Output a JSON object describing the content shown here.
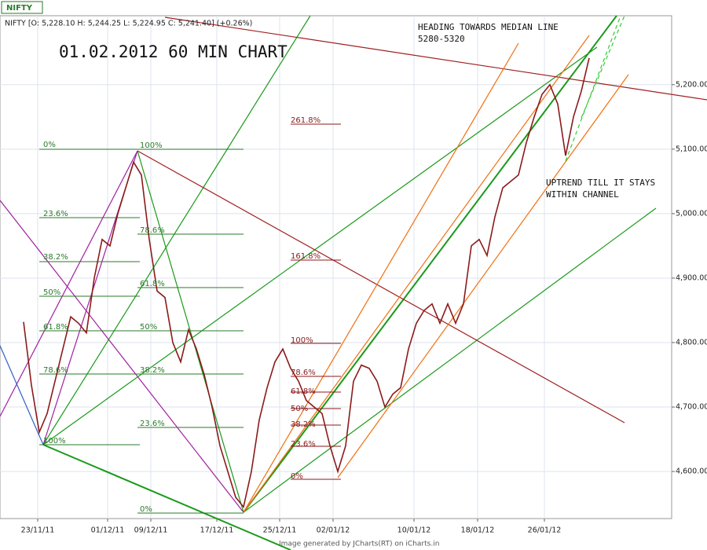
{
  "chart_data": {
    "type": "line",
    "symbol": "NIFTY",
    "title": "NIFTY [O: 5,228.10  H: 5,244.25  L: 5,224.95  C: 5,241.40] (+0.26%)",
    "subtitle": "01.02.2012 60 MIN CHART",
    "footer": "Image generated by  JCharts(RT) on iCharts.in",
    "annotations": {
      "target": "HEADING TOWARDS MEDIAN LINE",
      "target_range": "5280-5320",
      "trend_1": "UPTREND TILL IT STAYS",
      "trend_2": "WITHIN CHANNEL"
    },
    "fib_left": [
      "0%",
      "23.6%",
      "38.2%",
      "50%",
      "61.8%",
      "78.6%",
      "100%"
    ],
    "fib_mid": [
      "100%",
      "78.6%",
      "61.8%",
      "50%",
      "38.2%",
      "23.6%",
      "0%"
    ],
    "fib_right": [
      "261.8%",
      "161.8%",
      "100%",
      "78.6%",
      "61.8%",
      "50%",
      "38.2%",
      "23.6%",
      "0%"
    ],
    "x": [
      0,
      1,
      2,
      3,
      4,
      5,
      6,
      7,
      8,
      9,
      10,
      11,
      12,
      13,
      14,
      15,
      16,
      17,
      18,
      19,
      20,
      21,
      22,
      23,
      24,
      25,
      26,
      27,
      28,
      29,
      30,
      31,
      32,
      33,
      34,
      35,
      36,
      37,
      38,
      39,
      40,
      41,
      42,
      43,
      44,
      45,
      46,
      47,
      48,
      49,
      50,
      51,
      52,
      53,
      54,
      55,
      56,
      57,
      58,
      59,
      60,
      61,
      62,
      63,
      64,
      65,
      66,
      67,
      68,
      69,
      70,
      71,
      72
    ],
    "series": [
      {
        "name": "NIFTY",
        "color": "#8b1a1a",
        "values": [
          4832,
          4734,
          4661,
          4690,
          4740,
          4790,
          4840,
          4830,
          4815,
          4900,
          4960,
          4950,
          5000,
          5040,
          5080,
          5060,
          4960,
          4880,
          4870,
          4800,
          4770,
          4820,
          4790,
          4750,
          4700,
          4640,
          4600,
          4560,
          4545,
          4600,
          4680,
          4730,
          4770,
          4790,
          4760,
          4740,
          4710,
          4700,
          4690,
          4640,
          4600,
          4640,
          4740,
          4765,
          4760,
          4740,
          4700,
          4720,
          4730,
          4790,
          4830,
          4850,
          4860,
          4830,
          4860,
          4830,
          4860,
          4950,
          4960,
          4935,
          4995,
          5040,
          5050,
          5060,
          5110,
          5150,
          5185,
          5200,
          5170,
          5090,
          5150,
          5190,
          5241.4
        ]
      }
    ],
    "xlim": [
      -3,
      82.5
    ],
    "ylim": [
      4527,
      5307
    ],
    "xticks": [
      {
        "value": 1.8,
        "label": "23/11/11"
      },
      {
        "value": 10.7,
        "label": "01/12/11"
      },
      {
        "value": 16.2,
        "label": "09/12/11"
      },
      {
        "value": 24.6,
        "label": "17/12/11"
      },
      {
        "value": 32.6,
        "label": "25/12/11"
      },
      {
        "value": 39.4,
        "label": "02/01/12"
      },
      {
        "value": 49.7,
        "label": "10/01/12"
      },
      {
        "value": 57.8,
        "label": "18/01/12"
      },
      {
        "value": 66.3,
        "label": "26/01/12"
      }
    ],
    "yticks": [
      {
        "value": 4600,
        "label": "4,600.00"
      },
      {
        "value": 4700,
        "label": "4,700.00"
      },
      {
        "value": 4800,
        "label": "4,800.00"
      },
      {
        "value": 4900,
        "label": "4,900.00"
      },
      {
        "value": 5000,
        "label": "5,000.00"
      },
      {
        "value": 5100,
        "label": "5,100.00"
      },
      {
        "value": 5200,
        "label": "5,200.00"
      }
    ],
    "grid": true
  }
}
